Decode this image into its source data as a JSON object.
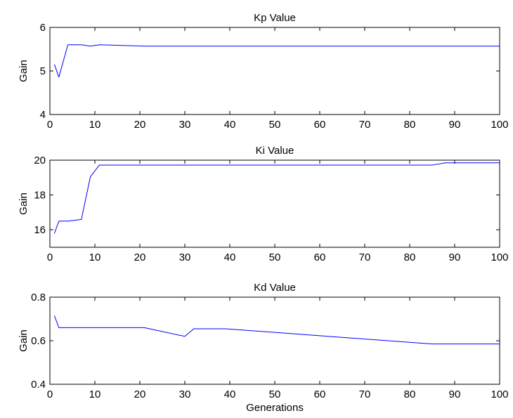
{
  "chart_data": [
    {
      "type": "line",
      "title": "Kp Value",
      "xlabel": "",
      "ylabel": "Gain",
      "xlim": [
        0,
        100
      ],
      "ylim": [
        4,
        6
      ],
      "xticks": [
        0,
        10,
        20,
        30,
        40,
        50,
        60,
        70,
        80,
        90,
        100
      ],
      "yticks": [
        4,
        5,
        6
      ],
      "grid": false,
      "series": [
        {
          "color": "#0000ff",
          "x": [
            1,
            2,
            4,
            7,
            9,
            11,
            21,
            100
          ],
          "y": [
            5.15,
            4.86,
            5.6,
            5.6,
            5.57,
            5.6,
            5.57,
            5.57
          ]
        }
      ]
    },
    {
      "type": "line",
      "title": "Ki Value",
      "xlabel": "",
      "ylabel": "Gain",
      "xlim": [
        0,
        100
      ],
      "ylim": [
        15,
        20
      ],
      "xticks": [
        0,
        10,
        20,
        30,
        40,
        50,
        60,
        70,
        80,
        90,
        100
      ],
      "yticks": [
        16,
        18,
        20
      ],
      "grid": false,
      "series": [
        {
          "color": "#0000ff",
          "x": [
            1,
            2,
            4,
            7,
            9,
            11,
            21,
            85,
            88,
            100
          ],
          "y": [
            15.8,
            16.5,
            16.5,
            16.6,
            19.05,
            19.72,
            19.72,
            19.72,
            19.85,
            19.85
          ]
        }
      ]
    },
    {
      "type": "line",
      "title": "Kd Value",
      "xlabel": "Generations",
      "ylabel": "Gain",
      "xlim": [
        0,
        100
      ],
      "ylim": [
        0.4,
        0.8
      ],
      "xticks": [
        0,
        10,
        20,
        30,
        40,
        50,
        60,
        70,
        80,
        90,
        100
      ],
      "yticks": [
        0.4,
        0.6,
        0.8
      ],
      "grid": false,
      "series": [
        {
          "color": "#0000ff",
          "x": [
            1,
            2,
            21,
            30,
            32,
            39,
            85,
            100
          ],
          "y": [
            0.715,
            0.66,
            0.66,
            0.62,
            0.655,
            0.655,
            0.585,
            0.585
          ]
        }
      ]
    }
  ]
}
